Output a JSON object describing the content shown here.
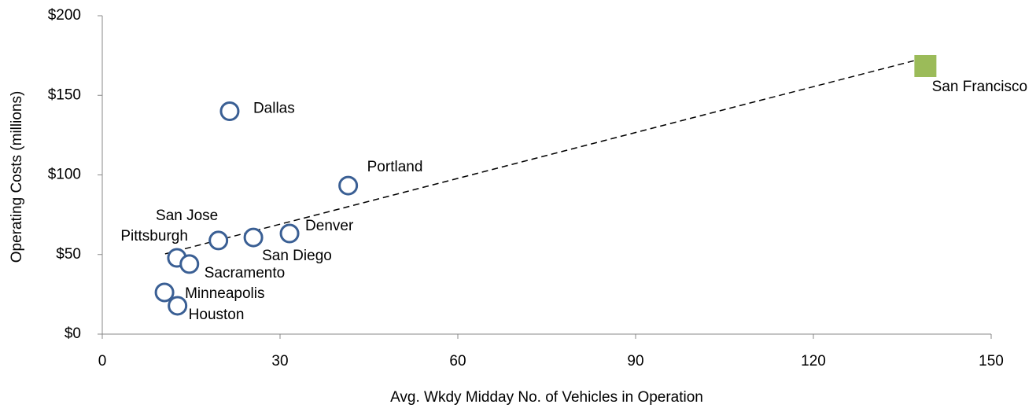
{
  "chart_data": {
    "type": "scatter",
    "xlabel": "Avg. Wkdy Midday No. of Vehicles in Operation",
    "ylabel": "Operating Costs (millions)",
    "xlim": [
      0,
      150
    ],
    "xticks": [
      0,
      30,
      60,
      90,
      120,
      150
    ],
    "ylim": [
      0,
      200
    ],
    "yticks": [
      {
        "value": 0,
        "label": "$0"
      },
      {
        "value": 50,
        "label": "$50"
      },
      {
        "value": 100,
        "label": "$100"
      },
      {
        "value": 150,
        "label": "$150"
      },
      {
        "value": 200,
        "label": "$200"
      }
    ],
    "grid": false,
    "series": [
      {
        "color": "#3a5f94",
        "marker": "circle",
        "labels": [
          "Dallas",
          "Portland",
          "Denver",
          "San Diego",
          "San Jose",
          "Pittsburgh",
          "Sacramento",
          "Minneapolis",
          "Houston"
        ],
        "x": [
          21.5,
          41.5,
          31.6,
          25.5,
          19.6,
          12.6,
          14.7,
          10.5,
          12.7
        ],
        "values": [
          140,
          93.3,
          63.2,
          60.7,
          58.8,
          47.9,
          44,
          26.2,
          17.8
        ]
      },
      {
        "color": "#9bbb59",
        "marker": "square",
        "labels": [
          "San Francisco"
        ],
        "x": [
          138.9
        ],
        "values": [
          168.4
        ]
      }
    ],
    "trendline": {
      "x": [
        10.6,
        140.7
      ],
      "values": [
        50.4,
        175.3
      ]
    }
  }
}
